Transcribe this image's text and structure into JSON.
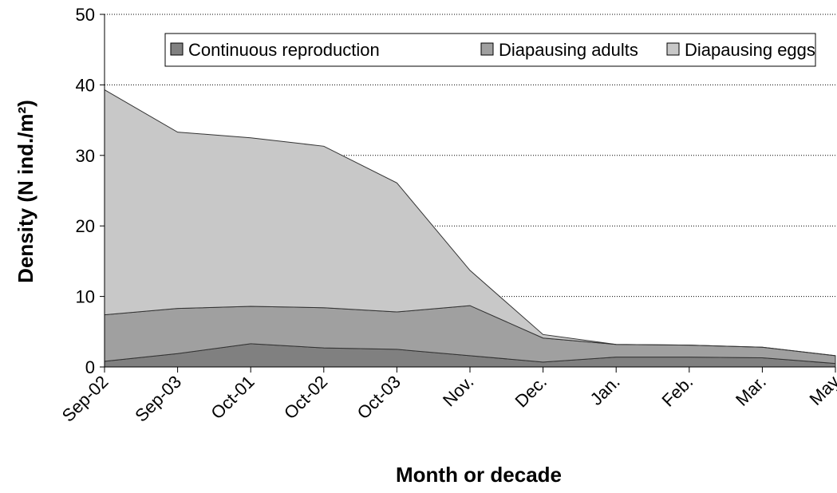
{
  "chart_data": {
    "type": "stacked_area",
    "x_label": "Month or decade",
    "y_label": "Density (N ind./m²)",
    "categories": [
      "Sep-02",
      "Sep-03",
      "Oct-01",
      "Oct-02",
      "Oct-03",
      "Nov.",
      "Dec.",
      "Jan.",
      "Feb.",
      "Mar.",
      "May"
    ],
    "series": [
      {
        "name": "Continuous reproduction",
        "color": "#808080",
        "values": [
          0.8,
          1.9,
          3.3,
          2.7,
          2.5,
          1.6,
          0.7,
          1.4,
          1.4,
          1.3,
          0.5
        ]
      },
      {
        "name": "Diapausing adults",
        "color": "#a0a0a0",
        "values": [
          6.6,
          6.4,
          5.3,
          5.7,
          5.3,
          7.1,
          3.4,
          1.8,
          1.7,
          1.5,
          1.1
        ]
      },
      {
        "name": "Diapausing eggs",
        "color": "#c8c8c8",
        "values": [
          31.9,
          25.0,
          23.9,
          22.9,
          18.3,
          5.0,
          0.5,
          0,
          0,
          0,
          0
        ]
      }
    ],
    "ylim": [
      0,
      50
    ],
    "yticks": [
      0,
      10,
      20,
      30,
      40,
      50
    ],
    "grid": true,
    "legend": "top"
  }
}
